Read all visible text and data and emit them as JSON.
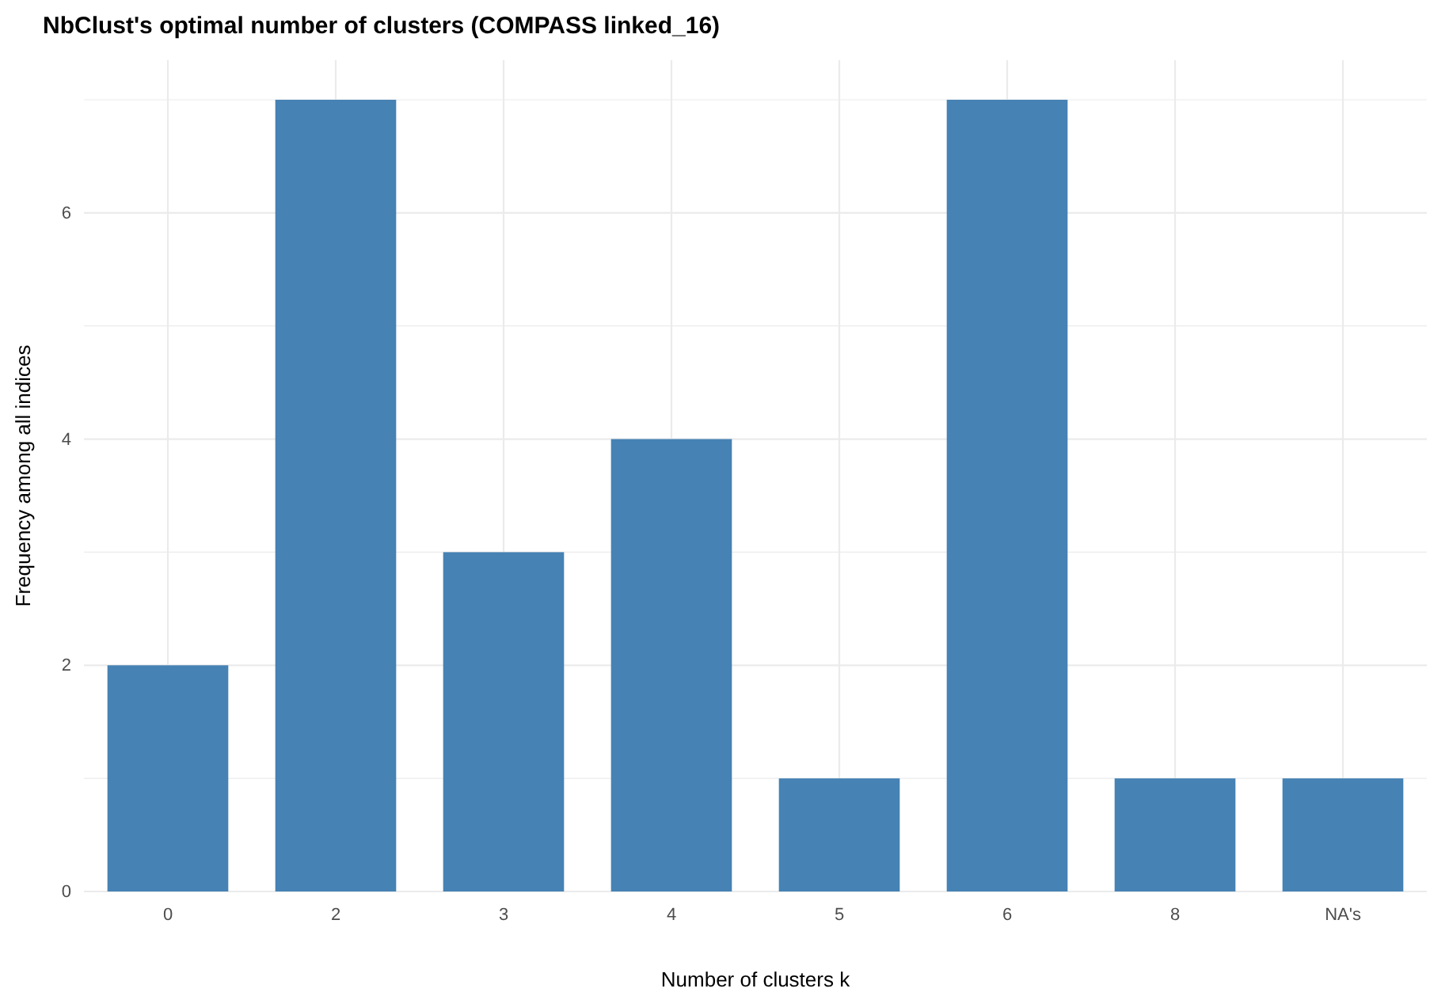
{
  "chart_data": {
    "type": "bar",
    "title": "NbClust's optimal number of clusters (COMPASS linked_16)",
    "xlabel": "Number of clusters k",
    "ylabel": "Frequency among all indices",
    "categories": [
      "0",
      "2",
      "3",
      "4",
      "5",
      "6",
      "8",
      "NA's"
    ],
    "values": [
      2,
      7,
      3,
      4,
      1,
      7,
      1,
      1
    ],
    "color": "#4682b4",
    "ylim": [
      0,
      7.35
    ],
    "yticks": [
      0,
      {
        "value": 1,
        "label": null
      },
      2,
      {
        "value": 3,
        "label": null
      },
      4,
      {
        "value": 5,
        "label": null
      },
      6,
      {
        "value": 7,
        "label": null
      }
    ],
    "grid": true
  }
}
